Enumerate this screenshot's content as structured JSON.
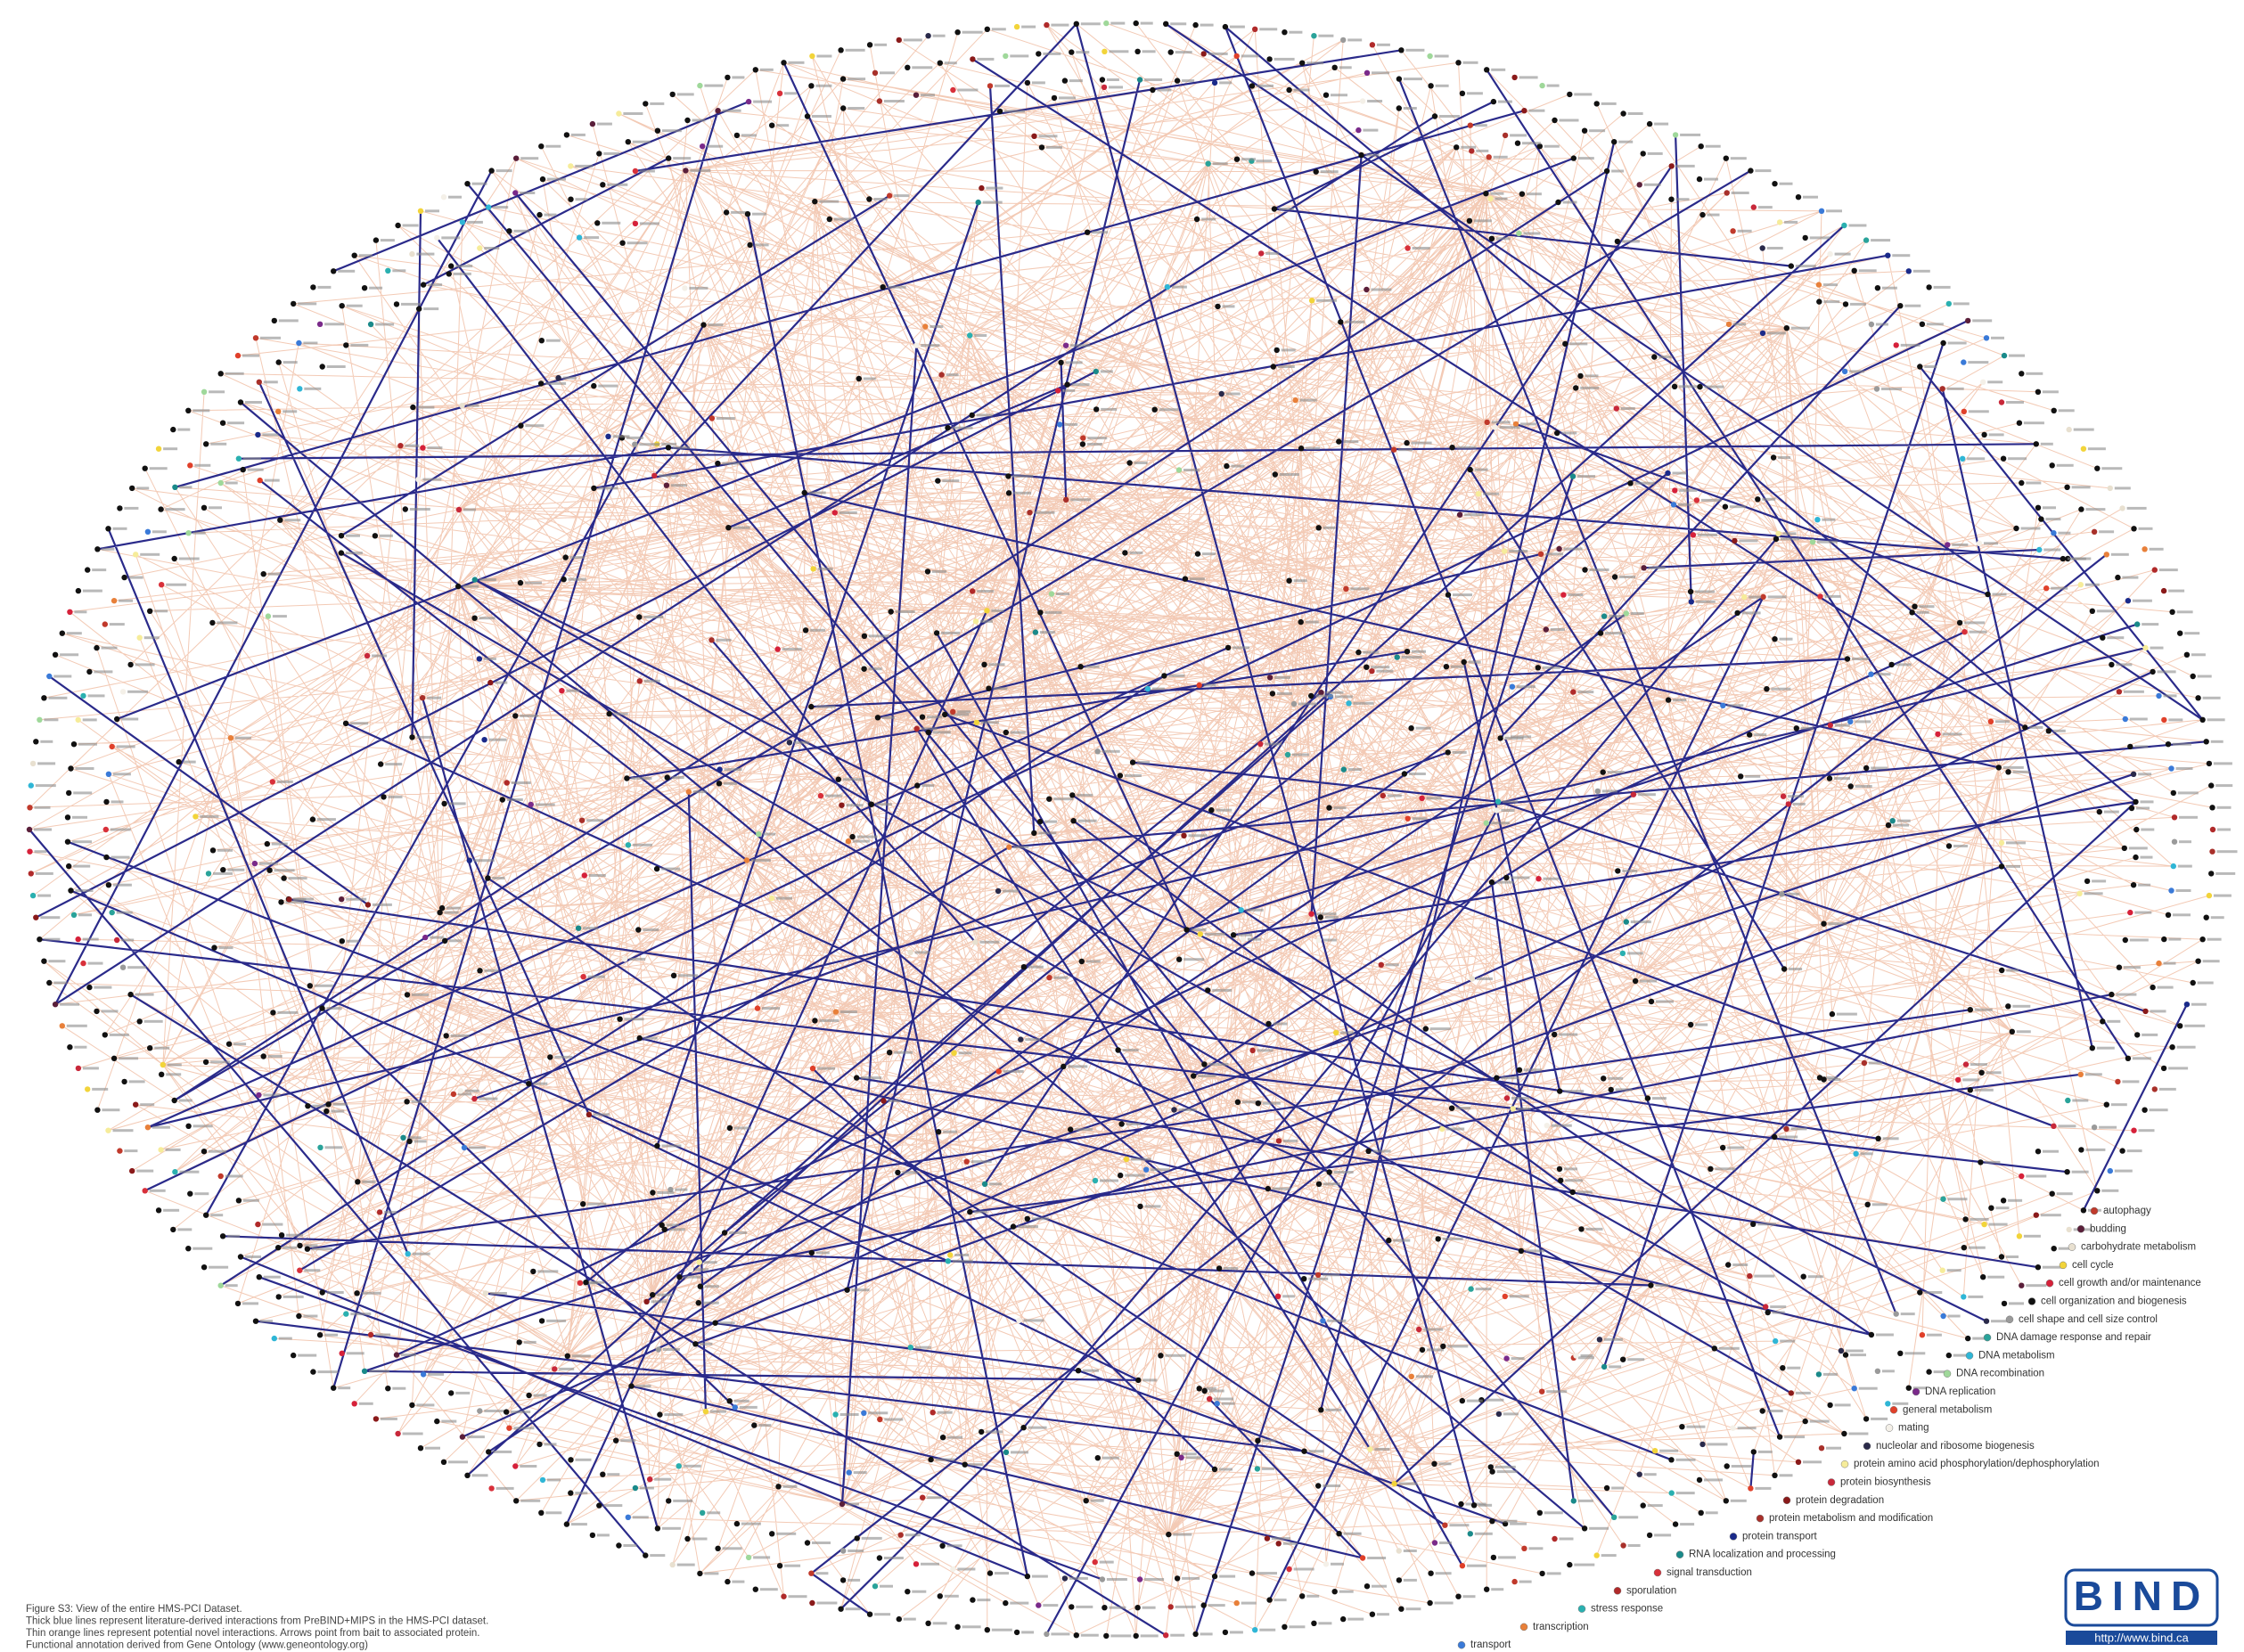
{
  "caption": {
    "lines": [
      "Figure S3: View of the entire HMS-PCI Dataset.",
      "Thick blue lines represent literature-derived interactions from PreBIND+MIPS in the HMS-PCI dataset.",
      "Thin orange lines represent potential novel interactions. Arrows point from bait to associated protein.",
      "Functional annotation derived from Gene Ontology (www.geneontology.org)"
    ]
  },
  "legend": {
    "items": [
      {
        "label": "autophagy",
        "color": "#c0392b"
      },
      {
        "label": "budding",
        "color": "#5a1f3a"
      },
      {
        "label": "carbohydrate metabolism",
        "color": "#e8e0d0"
      },
      {
        "label": "cell cycle",
        "color": "#f2d43a"
      },
      {
        "label": "cell growth and/or maintenance",
        "color": "#d6213a"
      },
      {
        "label": "cell organization and biogenesis",
        "color": "#111111"
      },
      {
        "label": "cell shape and cell size control",
        "color": "#9a9a9a"
      },
      {
        "label": "DNA damage response and repair",
        "color": "#2aa39a"
      },
      {
        "label": "DNA metabolism",
        "color": "#2fb6d6"
      },
      {
        "label": "DNA recombination",
        "color": "#9fd89a"
      },
      {
        "label": "DNA replication",
        "color": "#7a2a8a"
      },
      {
        "label": "general metabolism",
        "color": "#e0402a"
      },
      {
        "label": "mating",
        "color": "#f4f0e8"
      },
      {
        "label": "nucleolar and ribosome biogenesis",
        "color": "#2a2a4a"
      },
      {
        "label": "protein amino acid phosphorylation/dephosphorylation",
        "color": "#f6ec9a"
      },
      {
        "label": "protein biosynthesis",
        "color": "#c8283a"
      },
      {
        "label": "protein degradation",
        "color": "#8a1a1a"
      },
      {
        "label": "protein metabolism and modification",
        "color": "#a8302a"
      },
      {
        "label": "protein transport",
        "color": "#1a2a8a"
      },
      {
        "label": "RNA localization and processing",
        "color": "#1a8a8a"
      },
      {
        "label": "signal transduction",
        "color": "#d8303a"
      },
      {
        "label": "sporulation",
        "color": "#b02a2a"
      },
      {
        "label": "stress response",
        "color": "#2ab0b0"
      },
      {
        "label": "transcription",
        "color": "#e8803a"
      },
      {
        "label": "transport",
        "color": "#3a7ad8"
      }
    ]
  },
  "logo": {
    "text": "BIND",
    "url": "http://www.bind.ca"
  }
}
